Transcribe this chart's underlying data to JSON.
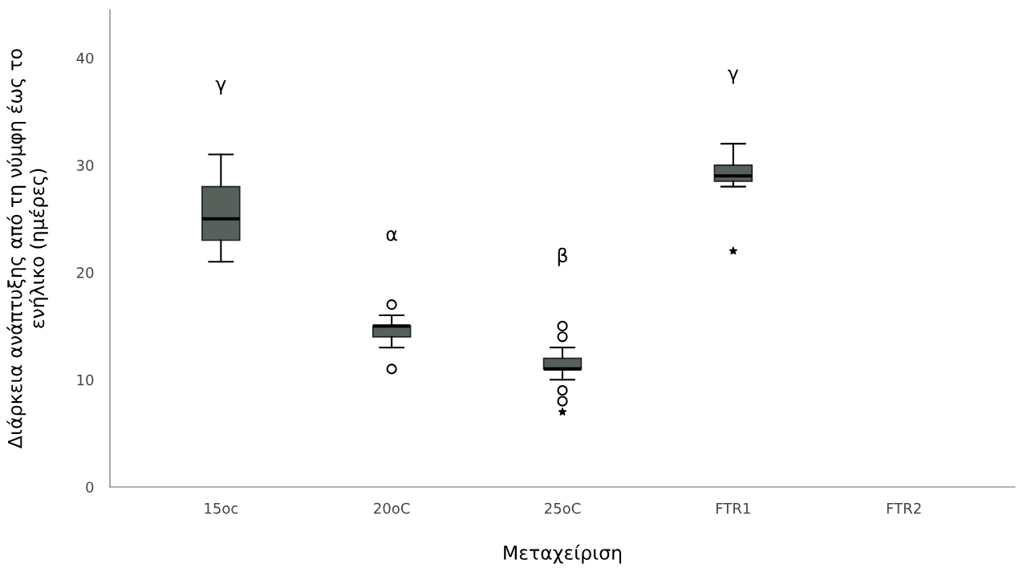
{
  "chart_data": {
    "type": "box",
    "xlabel": "Μεταχείριση",
    "ylabel": "Διάρκεια ανάπτυξης από τη νύμφη έως το\nενήλικο (ημέρες)",
    "categories": [
      "15oc",
      "20oC",
      "25oC",
      "FTR1",
      "FTR2"
    ],
    "color": "#56615b",
    "boxes": [
      {
        "low": 21,
        "q1": 23,
        "median": 25,
        "q3": 28,
        "high": 31
      },
      {
        "low": 13,
        "q1": 14,
        "median": 15,
        "q3": 15,
        "high": 16,
        "outliers": [
          17,
          11
        ]
      },
      {
        "low": 10,
        "q1": 11,
        "median": 11,
        "q3": 12,
        "high": 13,
        "outliers": [
          15,
          14,
          9,
          8,
          7
        ]
      },
      {
        "low": 28,
        "q1": 28.5,
        "median": 29,
        "q3": 30,
        "high": 32,
        "outliers": [
          22
        ]
      },
      null
    ],
    "ylim": [
      0,
      44.5
    ],
    "yticks": [
      0,
      10,
      20,
      30,
      40
    ],
    "grid": false,
    "annotations": [
      "γ",
      "α",
      "β",
      "γ"
    ]
  }
}
